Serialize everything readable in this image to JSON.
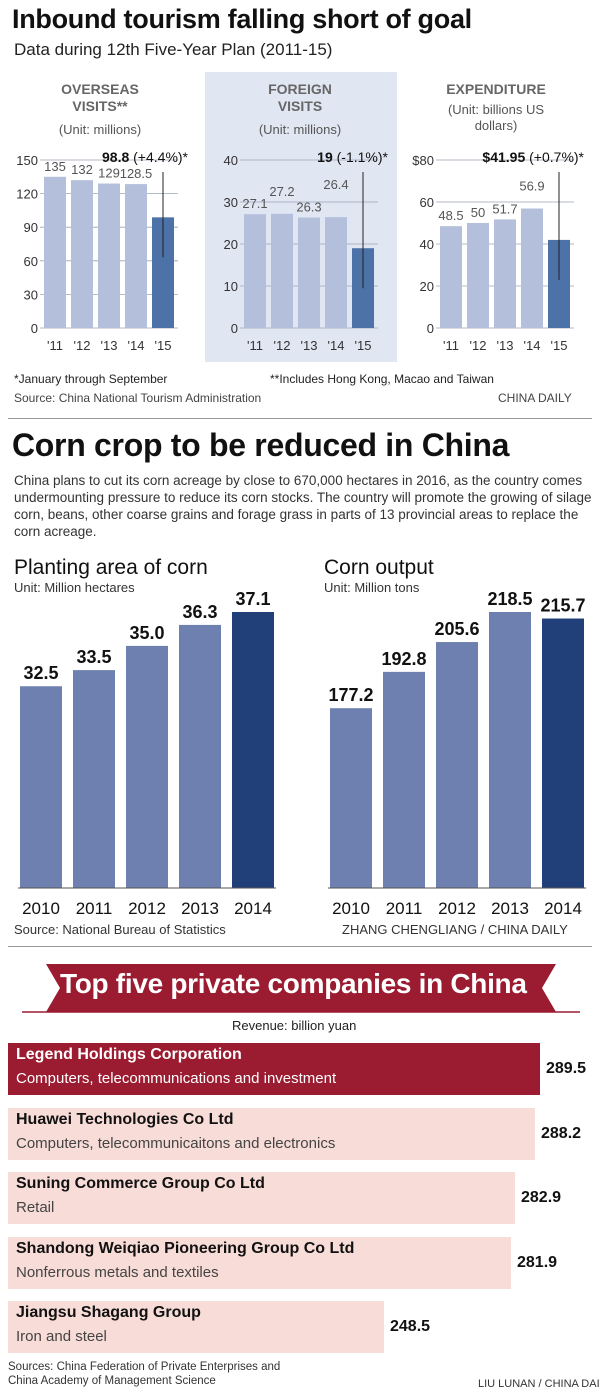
{
  "tourism": {
    "title": "Inbound tourism falling short of goal",
    "subtitle": "Data during 12th Five-Year Plan (2011-15)",
    "footnote_1": "*January through September",
    "footnote_2": "**Includes Hong Kong, Macao and Taiwan",
    "source": "Source: China National Tourism Administration",
    "credit": "CHINA DAILY",
    "colors": {
      "bar": "#b4c0db",
      "highlight": "#4c72a8",
      "panel": "#e1e6f3"
    }
  },
  "corn": {
    "title": "Corn crop to be reduced in China",
    "description": "China plans to cut its corn acreage by close to 670,000 hectares in 2016,  as the country comes undermounting pressure to reduce its corn stocks. The country will promote the growing of silage corn, beans, other coarse grains and forage grass in parts of 13 provincial areas to replace the corn acreage.",
    "source": "Source: National Bureau of Statistics",
    "credit": "ZHANG CHENGLIANG / CHINA DAILY",
    "colors": {
      "bar": "#6d80af",
      "highlight": "#213f78"
    }
  },
  "companies": {
    "title": "Top five private companies in China",
    "unit": "Revenue: billion yuan",
    "source": "Sources: China Federation of Private Enterprises and China Academy of Management Science",
    "credit": "LIU LUNAN / CHINA DAILY",
    "colors": {
      "banner": "#9b1b30",
      "top": "#9b1b30",
      "bar": "#f8dcd8"
    }
  },
  "chart_data": [
    {
      "type": "bar",
      "title": "OVERSEAS VISITS**",
      "unit_label": "(Unit: millions)",
      "categories": [
        "'11",
        "'12",
        "'13",
        "'14",
        "'15"
      ],
      "values": [
        135,
        132,
        129,
        128.5,
        98.8
      ],
      "value_labels": [
        "135",
        "132",
        "129",
        "128.5",
        "98.8"
      ],
      "callout_value": "98.8",
      "callout_change": "(+4.4%)*",
      "yticks": [
        "0",
        "30",
        "60",
        "90",
        "120",
        "150"
      ],
      "ylim": [
        0,
        150
      ],
      "grid": true
    },
    {
      "type": "bar",
      "title": "FOREIGN VISITS",
      "unit_label": "(Unit: millions)",
      "categories": [
        "'11",
        "'12",
        "'13",
        "'14",
        "'15"
      ],
      "values": [
        27.1,
        27.2,
        26.3,
        26.4,
        19
      ],
      "value_labels": [
        "27.1",
        "27.2",
        "26.3",
        "26.4",
        "19"
      ],
      "callout_value": "19",
      "callout_change": "(-1.1%)*",
      "yticks": [
        "0",
        "10",
        "20",
        "30",
        "40"
      ],
      "ylim": [
        0,
        40
      ],
      "grid": true
    },
    {
      "type": "bar",
      "title": "EXPENDITURE",
      "unit_label": "(Unit: billions US dollars)",
      "categories": [
        "'11",
        "'12",
        "'13",
        "'14",
        "'15"
      ],
      "values": [
        48.5,
        50,
        51.7,
        56.9,
        41.95
      ],
      "value_labels": [
        "48.5",
        "50",
        "51.7",
        "56.9",
        "$41.95"
      ],
      "callout_value": "$41.95",
      "callout_change": "(+0.7%)*",
      "yticks": [
        "0",
        "20",
        "40",
        "60",
        "$80"
      ],
      "ylim": [
        0,
        80
      ],
      "grid": true
    },
    {
      "type": "bar",
      "title": "Planting area of corn",
      "ylabel": "Unit: Million hectares",
      "categories": [
        "2010",
        "2011",
        "2012",
        "2013",
        "2014"
      ],
      "values": [
        32.5,
        33.5,
        35.0,
        36.3,
        37.1
      ],
      "value_labels": [
        "32.5",
        "33.5",
        "35.0",
        "36.3",
        "37.1"
      ],
      "grid": false
    },
    {
      "type": "bar",
      "title": "Corn output",
      "ylabel": "Unit: Million tons",
      "categories": [
        "2010",
        "2011",
        "2012",
        "2013",
        "2014"
      ],
      "values": [
        177.2,
        192.8,
        205.6,
        218.5,
        215.7
      ],
      "value_labels": [
        "177.2",
        "192.8",
        "205.6",
        "218.5",
        "215.7"
      ],
      "grid": false
    },
    {
      "type": "bar",
      "orientation": "horizontal",
      "title": "Top five private companies in China",
      "xlabel": "Revenue: billion yuan",
      "categories": [
        "Legend Holdings Corporation",
        "Huawei Technologies Co Ltd",
        "Suning Commerce Group Co Ltd",
        "Shandong Weiqiao Pioneering Group Co Ltd",
        "Jiangsu Shagang Group"
      ],
      "sectors": [
        "Computers, telecommunications and investment",
        "Computers, telecommunicaitons and electronics",
        "Retail",
        "Nonferrous metals and textiles",
        "Iron and steel"
      ],
      "values": [
        289.5,
        288.2,
        282.9,
        281.9,
        248.5
      ],
      "value_labels": [
        "289.5",
        "288.2",
        "282.9",
        "281.9",
        "248.5"
      ]
    }
  ]
}
